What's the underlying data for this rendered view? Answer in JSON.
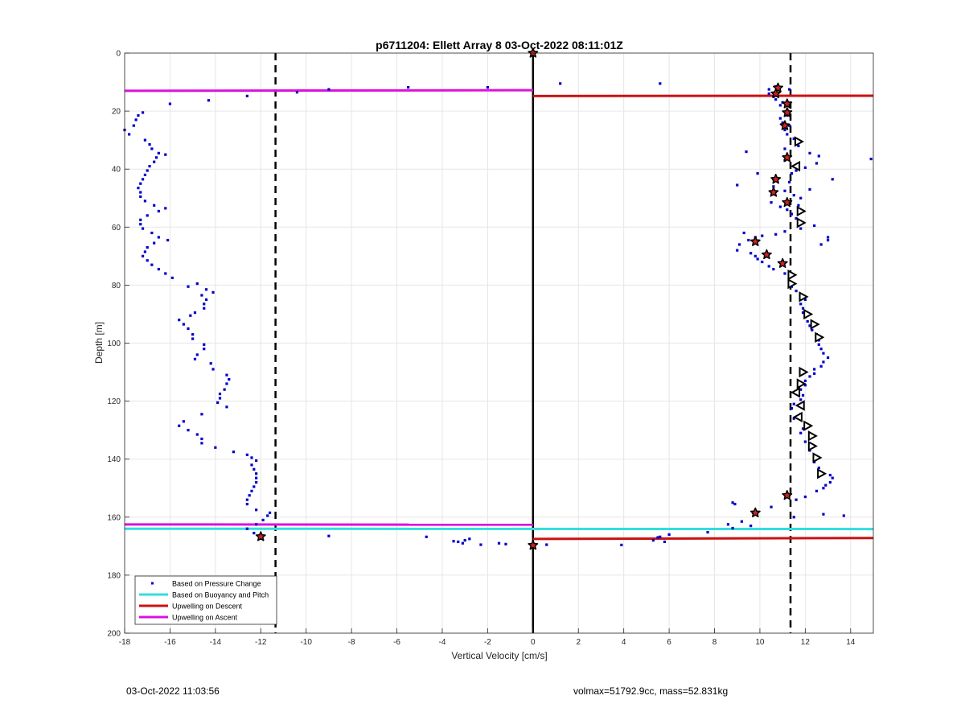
{
  "chart_data": {
    "type": "scatter",
    "title": "p6711204: Ellett Array 8 03-Oct-2022 08:11:01Z",
    "xlabel": "Vertical Velocity [cm/s]",
    "ylabel": "Depth [m]",
    "xlim": [
      -18,
      15
    ],
    "ylim": [
      0,
      200
    ],
    "y_reversed": true,
    "grid": true,
    "x_ticks": [
      -18,
      -16,
      -14,
      -12,
      -10,
      -8,
      -6,
      -4,
      -2,
      0,
      2,
      4,
      6,
      8,
      10,
      12,
      14
    ],
    "y_ticks": [
      0,
      20,
      40,
      60,
      80,
      100,
      120,
      140,
      160,
      180,
      200
    ],
    "legend_position": "bottom-left",
    "legend": [
      {
        "label": "Based on Pressure Change",
        "style": "dot",
        "color": "#0000cc"
      },
      {
        "label": "Based on Buoyancy and Pitch",
        "style": "line",
        "color": "#33dddd"
      },
      {
        "label": "Upwelling on Descent",
        "style": "line",
        "color": "#cc1111"
      },
      {
        "label": "Upwelling on Ascent",
        "style": "line",
        "color": "#dd11dd"
      }
    ],
    "reference_lines": {
      "dashed_x": [
        -11.35,
        11.35
      ],
      "solid_x": [
        0
      ]
    },
    "series": [
      {
        "name": "Based on Pressure Change",
        "kind": "points",
        "color": "#0000cc",
        "points": [
          [
            0,
            0
          ],
          [
            1.2,
            10.5
          ],
          [
            5.6,
            10.5
          ],
          [
            -2,
            11.8
          ],
          [
            -5.5,
            11.8
          ],
          [
            -9,
            12.5
          ],
          [
            -10.4,
            13.5
          ],
          [
            -12.6,
            14.8
          ],
          [
            -14.3,
            16.3
          ],
          [
            -16,
            17.5
          ],
          [
            -17.2,
            20.5
          ],
          [
            -17.4,
            21.5
          ],
          [
            -17.5,
            23
          ],
          [
            -17.6,
            25
          ],
          [
            -18,
            26.5
          ],
          [
            -17.8,
            28
          ],
          [
            -17.1,
            30
          ],
          [
            -16.9,
            31.5
          ],
          [
            -16.8,
            33
          ],
          [
            -16.5,
            34.5
          ],
          [
            -16.2,
            35
          ],
          [
            -16.6,
            36
          ],
          [
            -16.7,
            37.5
          ],
          [
            -16.9,
            39
          ],
          [
            -17,
            40.5
          ],
          [
            -17.1,
            42
          ],
          [
            -17.2,
            43.5
          ],
          [
            -17.3,
            45
          ],
          [
            -17.4,
            46.5
          ],
          [
            -17.3,
            48
          ],
          [
            -17.3,
            49.5
          ],
          [
            -17.1,
            51
          ],
          [
            -16.7,
            52.5
          ],
          [
            -16.2,
            53.5
          ],
          [
            -16.5,
            54.5
          ],
          [
            -17,
            56
          ],
          [
            -17.3,
            57.5
          ],
          [
            -17.3,
            59
          ],
          [
            -17.2,
            60.5
          ],
          [
            -16.8,
            62
          ],
          [
            -16.5,
            63.5
          ],
          [
            -16.1,
            64.5
          ],
          [
            -16.7,
            65.5
          ],
          [
            -17,
            67
          ],
          [
            -17.1,
            68.5
          ],
          [
            -17.2,
            70
          ],
          [
            -17,
            71.5
          ],
          [
            -16.8,
            73
          ],
          [
            -16.5,
            74.5
          ],
          [
            -16.2,
            76
          ],
          [
            -15.9,
            77.5
          ],
          [
            -14.8,
            79.5
          ],
          [
            -15.2,
            80.5
          ],
          [
            -14.4,
            81.5
          ],
          [
            -14.1,
            82.5
          ],
          [
            -14.6,
            83.5
          ],
          [
            -14.4,
            85
          ],
          [
            -14.5,
            86.5
          ],
          [
            -14.5,
            88
          ],
          [
            -14.9,
            89.5
          ],
          [
            -15.1,
            90.5
          ],
          [
            -15.6,
            92
          ],
          [
            -15.4,
            93.5
          ],
          [
            -15.2,
            95
          ],
          [
            -15,
            97
          ],
          [
            -15,
            98.5
          ],
          [
            -14.5,
            100.5
          ],
          [
            -14.5,
            102
          ],
          [
            -14.8,
            104
          ],
          [
            -14.9,
            105.5
          ],
          [
            -14.2,
            107
          ],
          [
            -14.1,
            109
          ],
          [
            -13.5,
            111
          ],
          [
            -13.4,
            112.5
          ],
          [
            -13.5,
            114
          ],
          [
            -13.6,
            116
          ],
          [
            -13.8,
            117.5
          ],
          [
            -13.8,
            119
          ],
          [
            -13.9,
            120.5
          ],
          [
            -13.5,
            122
          ],
          [
            -14.6,
            124.5
          ],
          [
            -15.4,
            127
          ],
          [
            -15.6,
            128.5
          ],
          [
            -15.2,
            130
          ],
          [
            -14.8,
            131.5
          ],
          [
            -14.6,
            133
          ],
          [
            -14.6,
            134.5
          ],
          [
            -14,
            136
          ],
          [
            -13.2,
            137.5
          ],
          [
            -12.6,
            138.5
          ],
          [
            -12.4,
            139.5
          ],
          [
            -12.2,
            140.5
          ],
          [
            -12.4,
            142
          ],
          [
            -12.3,
            143.5
          ],
          [
            -12.2,
            145
          ],
          [
            -12.2,
            146.5
          ],
          [
            -12.2,
            148
          ],
          [
            -12.3,
            149.5
          ],
          [
            -12.4,
            151
          ],
          [
            -12.5,
            152.5
          ],
          [
            -12.6,
            154
          ],
          [
            -12.6,
            155.5
          ],
          [
            -12.2,
            157.5
          ],
          [
            -11.6,
            158.5
          ],
          [
            -11.7,
            159.5
          ],
          [
            -11.9,
            161
          ],
          [
            -12.2,
            162.5
          ],
          [
            -12.6,
            164
          ],
          [
            -12.3,
            165.5
          ],
          [
            -12,
            166.5
          ],
          [
            -9,
            166.5
          ],
          [
            -4.7,
            166.8
          ],
          [
            -2.8,
            167.5
          ],
          [
            -3,
            168
          ],
          [
            -3.5,
            168.3
          ],
          [
            -3.3,
            168.5
          ],
          [
            -1.5,
            169
          ],
          [
            -1.2,
            169.3
          ],
          [
            -2.3,
            169.5
          ],
          [
            -3.1,
            169
          ],
          [
            0,
            169.5
          ],
          [
            0.6,
            169.5
          ],
          [
            3.9,
            169.6
          ],
          [
            5.3,
            168
          ],
          [
            5.5,
            167
          ],
          [
            5.6,
            166.8
          ],
          [
            6,
            166
          ],
          [
            5.8,
            168.5
          ],
          [
            7.7,
            165.2
          ],
          [
            8.8,
            163.8
          ],
          [
            9.6,
            163
          ],
          [
            9.2,
            161.5
          ],
          [
            8.6,
            162.5
          ],
          [
            9.7,
            158.5
          ],
          [
            9.9,
            158.3
          ],
          [
            8.9,
            155.5
          ],
          [
            8.8,
            155
          ],
          [
            10.5,
            156.5
          ],
          [
            11.5,
            160
          ],
          [
            12.8,
            159
          ],
          [
            13.7,
            159.5
          ],
          [
            11.3,
            152.5
          ],
          [
            11.6,
            154
          ],
          [
            12,
            153
          ],
          [
            12.5,
            151
          ],
          [
            12.8,
            150
          ],
          [
            12.9,
            149
          ],
          [
            13.1,
            148
          ],
          [
            13.2,
            146.5
          ],
          [
            13.1,
            145.5
          ],
          [
            12.6,
            143
          ],
          [
            12.4,
            141
          ],
          [
            12.5,
            139
          ],
          [
            12.2,
            137
          ],
          [
            12.2,
            135.5
          ],
          [
            12,
            134
          ],
          [
            11.8,
            131
          ],
          [
            11.9,
            129.5
          ],
          [
            11.5,
            126
          ],
          [
            11.8,
            124.5
          ],
          [
            11.4,
            122.5
          ],
          [
            11.5,
            121
          ],
          [
            11.8,
            119.5
          ],
          [
            11.9,
            118
          ],
          [
            11.8,
            116
          ],
          [
            12,
            114.5
          ],
          [
            12,
            113
          ],
          [
            12.2,
            111.5
          ],
          [
            12.4,
            110.5
          ],
          [
            12.4,
            109
          ],
          [
            12.7,
            108
          ],
          [
            12.8,
            106.5
          ],
          [
            13,
            105
          ],
          [
            12.8,
            103.5
          ],
          [
            12.7,
            102
          ],
          [
            12.6,
            100.5
          ],
          [
            12.6,
            99
          ],
          [
            12.5,
            97
          ],
          [
            12.3,
            95.5
          ],
          [
            12.2,
            94
          ],
          [
            12.1,
            92.5
          ],
          [
            12,
            91
          ],
          [
            11.9,
            89.5
          ],
          [
            11.9,
            88
          ],
          [
            11.8,
            86.5
          ],
          [
            12,
            85
          ],
          [
            11.6,
            82
          ],
          [
            11.4,
            80.5
          ],
          [
            11.3,
            79
          ],
          [
            11.3,
            77.5
          ],
          [
            11.1,
            76
          ],
          [
            10.6,
            74.5
          ],
          [
            10.4,
            73.5
          ],
          [
            10.1,
            72
          ],
          [
            9.9,
            71
          ],
          [
            9.8,
            70
          ],
          [
            9.6,
            69
          ],
          [
            9,
            68
          ],
          [
            9.1,
            66
          ],
          [
            9.5,
            64.5
          ],
          [
            9.8,
            63.5
          ],
          [
            10.1,
            63
          ],
          [
            10.7,
            62.5
          ],
          [
            11.1,
            61.5
          ],
          [
            9.3,
            62
          ],
          [
            11.8,
            60.5
          ],
          [
            12.4,
            59.5
          ],
          [
            13,
            63.5
          ],
          [
            13,
            64.5
          ],
          [
            12.7,
            66
          ],
          [
            11.6,
            57
          ],
          [
            11.4,
            55.5
          ],
          [
            11.2,
            54
          ],
          [
            10.9,
            53
          ],
          [
            11.7,
            52.5
          ],
          [
            10.5,
            51.5
          ],
          [
            11.8,
            50
          ],
          [
            11.5,
            49
          ],
          [
            11.1,
            47.5
          ],
          [
            12.2,
            47
          ],
          [
            10.6,
            46
          ],
          [
            9,
            45.5
          ],
          [
            11.3,
            44.5
          ],
          [
            10.6,
            43.5
          ],
          [
            13.2,
            43.5
          ],
          [
            9.9,
            41.5
          ],
          [
            11.4,
            41.5
          ],
          [
            11.6,
            40.5
          ],
          [
            12,
            39.5
          ],
          [
            12.5,
            38
          ],
          [
            11.1,
            37
          ],
          [
            12.2,
            34.5
          ],
          [
            12.6,
            35.5
          ],
          [
            9.4,
            34
          ],
          [
            11.1,
            33
          ],
          [
            11.7,
            32
          ],
          [
            11.5,
            29.5
          ],
          [
            11.2,
            28
          ],
          [
            11.1,
            26.5
          ],
          [
            11.3,
            25
          ],
          [
            11,
            24
          ],
          [
            10.9,
            22.5
          ],
          [
            11.2,
            21.5
          ],
          [
            11.2,
            19.5
          ],
          [
            10.9,
            18
          ],
          [
            11,
            17
          ],
          [
            10.7,
            16
          ],
          [
            10.6,
            15
          ],
          [
            10.4,
            14
          ],
          [
            10.4,
            12.5
          ],
          [
            10.7,
            11.5
          ],
          [
            11.3,
            12.5
          ],
          [
            14.9,
            36.5
          ]
        ]
      },
      {
        "name": "Upwelling on Ascent",
        "kind": "segments",
        "color": "#dd11dd",
        "segments": [
          [
            [
              -18,
              13
            ],
            [
              0,
              12.8
            ]
          ],
          [
            [
              -18,
              162.5
            ],
            [
              0,
              162.6
            ]
          ]
        ]
      },
      {
        "name": "Based on Buoyancy and Pitch",
        "kind": "segments",
        "color": "#33dddd",
        "segments": [
          [
            [
              -18,
              164
            ],
            [
              15,
              164.1
            ]
          ]
        ]
      },
      {
        "name": "Upwelling on Descent",
        "kind": "segments",
        "color": "#cc1111",
        "segments": [
          [
            [
              0,
              14.8
            ],
            [
              15,
              14.7
            ]
          ],
          [
            [
              0,
              167.5
            ],
            [
              15,
              167.2
            ]
          ]
        ]
      }
    ],
    "markers": {
      "red_stars": [
        [
          0,
          0
        ],
        [
          10.8,
          12
        ],
        [
          10.7,
          14
        ],
        [
          11.2,
          17.5
        ],
        [
          11.2,
          20.5
        ],
        [
          11.1,
          25
        ],
        [
          11.2,
          36
        ],
        [
          10.7,
          43.5
        ],
        [
          10.6,
          48
        ],
        [
          11.2,
          51.5
        ],
        [
          9.8,
          65
        ],
        [
          10.3,
          69.5
        ],
        [
          11,
          72.5
        ],
        [
          11.2,
          152.5
        ],
        [
          9.8,
          158.5
        ],
        [
          -12,
          166.7
        ],
        [
          0,
          169.7
        ]
      ],
      "open_triangles_right": [
        [
          11.7,
          30.5
        ],
        [
          11.8,
          54.5
        ],
        [
          11.8,
          58.5
        ],
        [
          11.4,
          76.5
        ],
        [
          11.4,
          79.5
        ],
        [
          11.9,
          84
        ],
        [
          12.1,
          90
        ],
        [
          12.4,
          93.5
        ],
        [
          12.6,
          98
        ],
        [
          11.9,
          110
        ],
        [
          11.8,
          114
        ],
        [
          12.1,
          128.5
        ],
        [
          12.3,
          132
        ],
        [
          12.3,
          135.5
        ],
        [
          12.5,
          139.5
        ],
        [
          12.7,
          145
        ]
      ],
      "open_triangles_left": [
        [
          11.6,
          39
        ],
        [
          11.6,
          117
        ],
        [
          11.8,
          121.5
        ],
        [
          11.7,
          125.5
        ]
      ]
    }
  },
  "footer": {
    "timestamp": "03-Oct-2022 11:03:56",
    "stats": "volmax=51792.9cc, mass=52.831kg"
  }
}
